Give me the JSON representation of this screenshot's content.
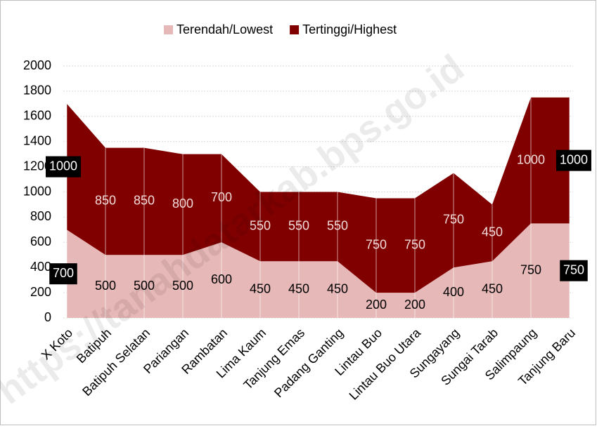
{
  "chart_data": {
    "type": "stacked_area",
    "watermark": "https://tanahdatarkab.bps.go.id",
    "categories": [
      "X Koto",
      "Batipuh",
      "Batipuh Selatan",
      "Pariangan",
      "Rambatan",
      "Lima Kaum",
      "Tanjung Emas",
      "Padang Ganting",
      "Lintau Buo",
      "Lintau Buo Utara",
      "Sungayang",
      "Sungai Tarab",
      "Salimpaung",
      "Tanjung Baru"
    ],
    "series": [
      {
        "name": "Terendah/Lowest",
        "color": "#e6b8b7",
        "values": [
          700,
          500,
          500,
          500,
          600,
          450,
          450,
          450,
          200,
          200,
          400,
          450,
          750,
          750
        ]
      },
      {
        "name": "Tertinggi/Highest",
        "color": "#800000",
        "values": [
          1000,
          850,
          850,
          800,
          700,
          550,
          550,
          550,
          750,
          750,
          750,
          450,
          1000,
          1000
        ]
      }
    ],
    "ylim": [
      0,
      2000
    ],
    "yticks": [
      0,
      200,
      400,
      600,
      800,
      1000,
      1200,
      1400,
      1600,
      1800,
      2000
    ],
    "grid": true,
    "legend": "top"
  }
}
